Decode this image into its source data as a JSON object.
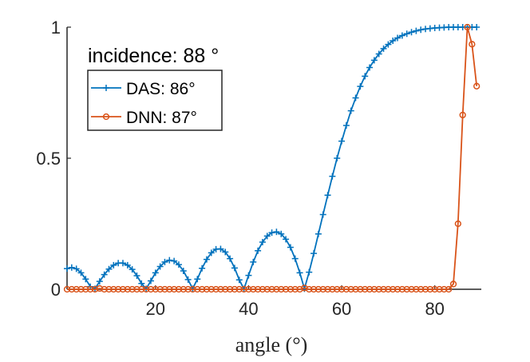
{
  "chart_data": {
    "type": "line",
    "title": "",
    "annotation": "incidence: 88 °",
    "xlabel": "angle (°)",
    "ylabel": "",
    "xlim": [
      1,
      90
    ],
    "ylim": [
      0,
      1
    ],
    "xticks": [
      20,
      40,
      60,
      80
    ],
    "xtick_labels": [
      "20",
      "40",
      "60",
      "80"
    ],
    "yticks": [
      0,
      0.5,
      1
    ],
    "ytick_labels": [
      "0",
      "0.5",
      "1"
    ],
    "legend_placement": "top-left",
    "grid": false,
    "series": [
      {
        "name": "DAS: 86°",
        "color": "#0072BD",
        "marker": "+",
        "x": [
          1,
          2,
          3,
          4,
          5,
          6,
          7,
          8,
          9,
          10,
          11,
          12,
          13,
          14,
          15,
          16,
          17,
          18,
          19,
          20,
          21,
          22,
          23,
          24,
          25,
          26,
          27,
          28,
          29,
          30,
          31,
          32,
          33,
          34,
          35,
          36,
          37,
          38,
          39,
          40,
          41,
          42,
          43,
          44,
          45,
          46,
          47,
          48,
          49,
          50,
          51,
          52,
          53,
          54,
          55,
          56,
          57,
          58,
          59,
          60,
          61,
          62,
          63,
          64,
          65,
          66,
          67,
          68,
          69,
          70,
          71,
          72,
          73,
          74,
          75,
          76,
          77,
          78,
          79,
          80,
          81,
          82,
          83,
          84,
          85,
          86,
          87,
          88,
          89
        ],
        "values": [
          0.079,
          0.083,
          0.078,
          0.063,
          0.039,
          0.01,
          0.002,
          0.03,
          0.056,
          0.077,
          0.092,
          0.1,
          0.1,
          0.092,
          0.076,
          0.052,
          0.022,
          0.002,
          0.032,
          0.063,
          0.087,
          0.104,
          0.111,
          0.108,
          0.094,
          0.07,
          0.037,
          0.002,
          0.039,
          0.08,
          0.114,
          0.139,
          0.153,
          0.154,
          0.142,
          0.117,
          0.081,
          0.036,
          0.001,
          0.053,
          0.104,
          0.147,
          0.18,
          0.203,
          0.216,
          0.219,
          0.211,
          0.191,
          0.16,
          0.117,
          0.063,
          0.002,
          0.065,
          0.137,
          0.211,
          0.285,
          0.359,
          0.431,
          0.5,
          0.565,
          0.625,
          0.681,
          0.73,
          0.774,
          0.813,
          0.846,
          0.874,
          0.898,
          0.918,
          0.934,
          0.948,
          0.959,
          0.968,
          0.975,
          0.981,
          0.986,
          0.99,
          0.993,
          0.995,
          0.997,
          0.998,
          0.999,
          1.0,
          1.0,
          1.0,
          1.0,
          1.0,
          1.0,
          1.0
        ]
      },
      {
        "name": "DNN: 87°",
        "color": "#D95319",
        "marker": "o",
        "x": [
          1,
          2,
          3,
          4,
          5,
          6,
          7,
          8,
          9,
          10,
          11,
          12,
          13,
          14,
          15,
          16,
          17,
          18,
          19,
          20,
          21,
          22,
          23,
          24,
          25,
          26,
          27,
          28,
          29,
          30,
          31,
          32,
          33,
          34,
          35,
          36,
          37,
          38,
          39,
          40,
          41,
          42,
          43,
          44,
          45,
          46,
          47,
          48,
          49,
          50,
          51,
          52,
          53,
          54,
          55,
          56,
          57,
          58,
          59,
          60,
          61,
          62,
          63,
          64,
          65,
          66,
          67,
          68,
          69,
          70,
          71,
          72,
          73,
          74,
          75,
          76,
          77,
          78,
          79,
          80,
          81,
          82,
          83,
          84,
          85,
          86,
          87,
          88,
          89
        ],
        "values": [
          0,
          0,
          0,
          0,
          0,
          0,
          0,
          0.003,
          0,
          0,
          0,
          0,
          0,
          0,
          0,
          0,
          0,
          0,
          0,
          0,
          0,
          0,
          0,
          0,
          0,
          0,
          0,
          0,
          0,
          0,
          0,
          0,
          0,
          0,
          0,
          0,
          0,
          0,
          0,
          0,
          0,
          0,
          0,
          0,
          0,
          0,
          0,
          0,
          0,
          0,
          0,
          0.005,
          0,
          0,
          0,
          0,
          0,
          0,
          0,
          0,
          0,
          0,
          0,
          0,
          0,
          0,
          0,
          0,
          0,
          0,
          0,
          0,
          0,
          0,
          0,
          0,
          0,
          0,
          0,
          0,
          0,
          0,
          0,
          0.02,
          0.25,
          0.665,
          1.0,
          0.935,
          0.775
        ]
      }
    ]
  }
}
